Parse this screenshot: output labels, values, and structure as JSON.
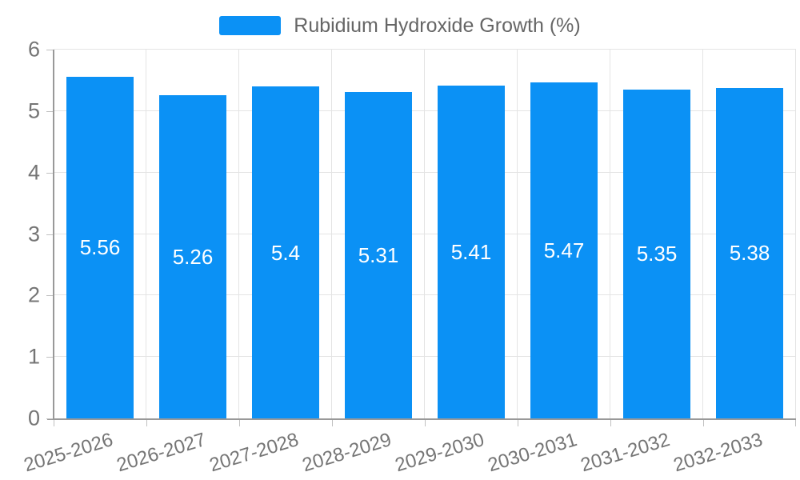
{
  "chart_data": {
    "type": "bar",
    "title": "Rubidium Hydroxide Growth (%)",
    "legend": {
      "position": "top-center",
      "label": "Rubidium Hydroxide Growth (%)"
    },
    "categories": [
      "2025-2026",
      "2026-2027",
      "2027-2028",
      "2028-2029",
      "2029-2030",
      "2030-2031",
      "2031-2032",
      "2032-2033"
    ],
    "series": [
      {
        "name": "Rubidium Hydroxide Growth (%)",
        "values": [
          5.56,
          5.26,
          5.4,
          5.31,
          5.41,
          5.47,
          5.35,
          5.38
        ],
        "value_labels": [
          "5.56",
          "5.26",
          "5.4",
          "5.31",
          "5.41",
          "5.47",
          "5.35",
          "5.38"
        ]
      }
    ],
    "xlabel": "",
    "ylabel": "",
    "ylim": [
      0,
      6
    ],
    "yticks": [
      0,
      1,
      2,
      3,
      4,
      5,
      6
    ],
    "grid": true,
    "value_label_position": "inside-center",
    "colors": {
      "bar": "#0b91f5",
      "bar_value_text": "#ffffff",
      "axis_text": "#757575",
      "legend_text": "#666666",
      "gridline": "#e4e4e4",
      "axis_line": "#999999",
      "tick_mark": "#c0c0c0",
      "background": "#ffffff"
    }
  }
}
